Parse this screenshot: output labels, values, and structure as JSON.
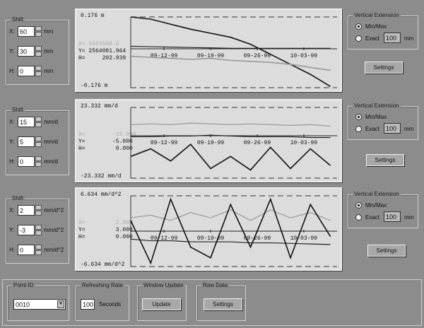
{
  "panels": [
    {
      "shift": {
        "title": "Shift",
        "rows": [
          {
            "label": "X:",
            "value": "60",
            "unit": "mm"
          },
          {
            "label": "Y:",
            "value": "30",
            "unit": "mm"
          },
          {
            "label": "H:",
            "value": "0",
            "unit": "mm"
          }
        ]
      },
      "readout": {
        "top": "0.176 m",
        "bottom": "-0.176 m",
        "x": "X= 5564588.6",
        "y": "Y= 2564081.964",
        "h": "H=     202.939"
      },
      "vertical": {
        "title": "Vertical Extension",
        "minmax": "Min/Max",
        "exact": "Exact",
        "exact_value": "100",
        "unit": "mm",
        "settings": "Settings"
      }
    },
    {
      "shift": {
        "title": "Shift",
        "rows": [
          {
            "label": "X:",
            "value": "15",
            "unit": "mm/d"
          },
          {
            "label": "Y:",
            "value": "5",
            "unit": "mm/d"
          },
          {
            "label": "H:",
            "value": "0",
            "unit": "mm/d"
          }
        ]
      },
      "readout": {
        "top": "23.332 mm/d",
        "bottom": "-23.332 mm/d",
        "x": "X=        -15.000",
        "y": "Y=        -5.000",
        "h": "H=         0.000"
      },
      "vertical": {
        "title": "Vertical Extension",
        "minmax": "Min/Max",
        "exact": "Exact",
        "exact_value": "100",
        "unit": "mm",
        "settings": "Settings"
      }
    },
    {
      "shift": {
        "title": "Shift",
        "rows": [
          {
            "label": "X:",
            "value": "2",
            "unit": "mm/d^2"
          },
          {
            "label": "Y:",
            "value": "-3",
            "unit": "mm/d^2"
          },
          {
            "label": "H:",
            "value": "0",
            "unit": "mm/d^2"
          }
        ]
      },
      "readout": {
        "top": "6.634 mm/d^2",
        "bottom": "-6.634 mm/d^2",
        "x": "X=         2.000",
        "y": "Y=         3.000",
        "h": "H=         0.000"
      },
      "vertical": {
        "title": "Vertical Extension",
        "minmax": "Min/Max",
        "exact": "Exact",
        "exact_value": "100",
        "unit": "mm",
        "settings": "Settings"
      }
    }
  ],
  "bottom": {
    "point_id": {
      "title": "Point ID",
      "value": "0010"
    },
    "refresh": {
      "title": "Refreshing Rate",
      "value": "100",
      "unit": "Seconds"
    },
    "window_update": {
      "title": "Window Update",
      "button": "Update"
    },
    "raw_data": {
      "title": "Raw Data",
      "button": "Settings"
    }
  },
  "chart_data": [
    {
      "type": "line",
      "x_ticks": [
        "09-12-99",
        "09-19-99",
        "09-26-99",
        "10-03-99"
      ],
      "ylim": [
        -0.176,
        0.176
      ],
      "x": [
        "09-07-99",
        "09-10-99",
        "09-13-99",
        "09-16-99",
        "09-19-99",
        "09-22-99",
        "09-25-99",
        "09-28-99",
        "10-01-99",
        "10-04-99",
        "10-07-99"
      ],
      "series": [
        {
          "color": "#111111",
          "values": [
            0.176,
            0.165,
            0.14,
            0.115,
            0.095,
            0.075,
            0.04,
            -0.01,
            -0.06,
            -0.11,
            -0.17
          ]
        },
        {
          "color": "#222222",
          "values": [
            0.03,
            0.028,
            0.026,
            0.024,
            0.022,
            0.02,
            0.02,
            0.02,
            0.02,
            0.02,
            0.02
          ]
        },
        {
          "color": "#999999",
          "values": [
            -0.02,
            -0.025,
            -0.03,
            -0.035,
            -0.03,
            -0.04,
            -0.045,
            -0.05,
            -0.06,
            -0.075,
            -0.09
          ]
        }
      ]
    },
    {
      "type": "line",
      "x_ticks": [
        "09-12-99",
        "09-19-99",
        "09-26-99",
        "10-03-99"
      ],
      "ylim": [
        -23.332,
        23.332
      ],
      "x": [
        "09-07-99",
        "09-10-99",
        "09-13-99",
        "09-16-99",
        "09-19-99",
        "09-22-99",
        "09-25-99",
        "09-28-99",
        "10-01-99",
        "10-04-99",
        "10-07-99"
      ],
      "series": [
        {
          "color": "#999999",
          "values": [
            12,
            12.5,
            12,
            13,
            12.5,
            12,
            12.5,
            12,
            11.5,
            12,
            11
          ]
        },
        {
          "color": "#222222",
          "values": [
            4,
            4,
            4.5,
            4.5,
            5,
            4.5,
            4,
            4,
            4,
            3.5,
            3.5
          ]
        },
        {
          "color": "#111111",
          "values": [
            -9,
            -4,
            -12,
            -1,
            -17,
            -9,
            -18,
            -3,
            -17,
            -4,
            -15
          ]
        }
      ]
    },
    {
      "type": "line",
      "x_ticks": [
        "09-12-99",
        "09-19-99",
        "09-26-99",
        "10-03-99"
      ],
      "ylim": [
        -6.634,
        6.634
      ],
      "x": [
        "09-07-99",
        "09-10-99",
        "09-13-99",
        "09-16-99",
        "09-19-99",
        "09-22-99",
        "09-25-99",
        "09-28-99",
        "10-01-99",
        "10-04-99",
        "10-07-99"
      ],
      "series": [
        {
          "color": "#999999",
          "values": [
            2.5,
            3,
            2,
            3.5,
            2.5,
            4,
            2,
            4,
            2.5,
            3.5,
            2
          ]
        },
        {
          "color": "#222222",
          "values": [
            -1.5,
            -1.8,
            -1.8,
            -2,
            -2,
            -2,
            -2.2,
            -2.2,
            -2.3,
            -2.4,
            -2.5
          ]
        },
        {
          "color": "#111111",
          "values": [
            2,
            -6,
            6,
            -3,
            -5,
            5,
            -3,
            6,
            -5,
            5,
            -1
          ]
        }
      ]
    }
  ]
}
